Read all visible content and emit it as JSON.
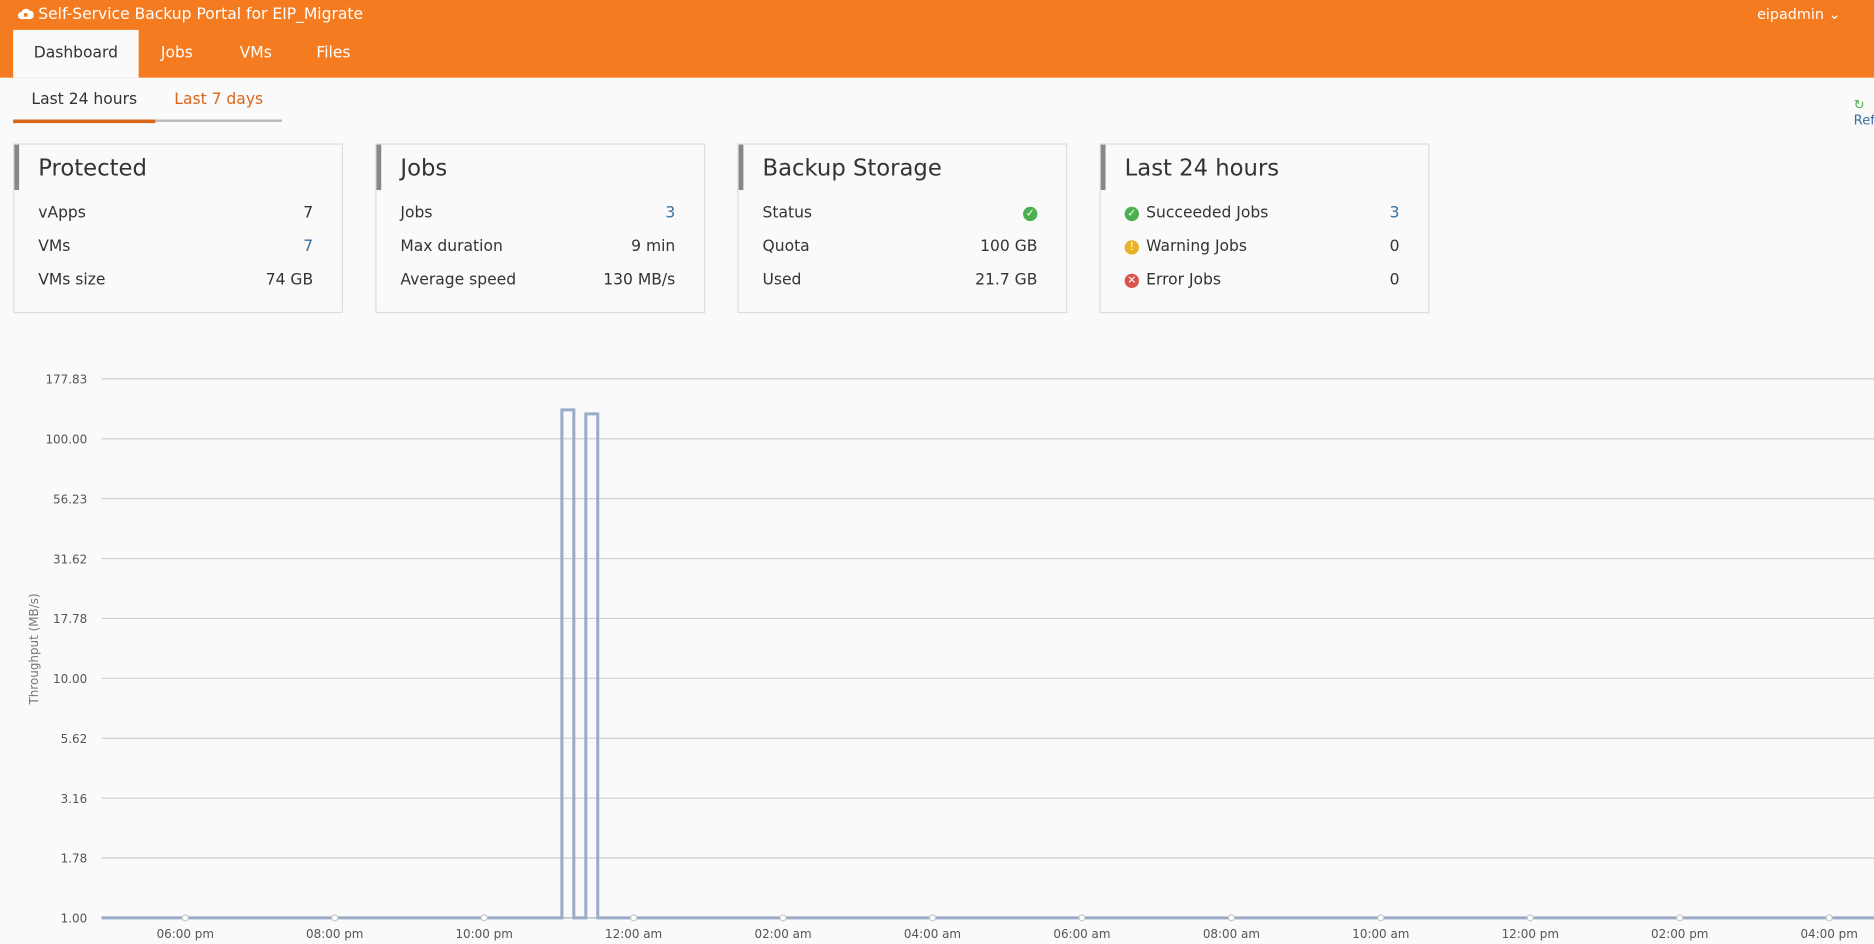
{
  "header": {
    "title": "Self-Service Backup Portal for EIP_Migrate",
    "user": "eipadmin"
  },
  "tabs": [
    "Dashboard",
    "Jobs",
    "VMs",
    "Files"
  ],
  "period_tabs": [
    "Last 24 hours",
    "Last 7 days"
  ],
  "refresh": "Ref",
  "cards": [
    {
      "title": "Protected",
      "rows": [
        [
          "vApps",
          "7"
        ],
        [
          "VMs",
          "7"
        ],
        [
          "VMs size",
          "74 GB"
        ]
      ]
    },
    {
      "title": "Jobs",
      "rows": [
        [
          "Jobs",
          "3"
        ],
        [
          "Max duration",
          "9 min"
        ],
        [
          "Average speed",
          "130 MB/s"
        ]
      ]
    },
    {
      "title": "Backup Storage",
      "rows": [
        [
          "Status",
          ""
        ],
        [
          "Quota",
          "100 GB"
        ],
        [
          "Used",
          "21.7 GB"
        ]
      ]
    },
    {
      "title": "Last 24 hours",
      "rows": [
        [
          "Succeeded Jobs",
          "3"
        ],
        [
          "Warning Jobs",
          "0"
        ],
        [
          "Error Jobs",
          "0"
        ]
      ]
    }
  ],
  "chart_data": {
    "type": "line",
    "y_label": "Throughput (MB/s)",
    "log_scale": true,
    "grid": true,
    "color": "#9aabc7",
    "x": [
      16.88,
      23.04,
      23.04,
      23.2,
      23.2,
      23.36,
      23.36,
      23.52,
      23.52,
      40.6
    ],
    "values": [
      1,
      1,
      132,
      132,
      1,
      1,
      127,
      127,
      1,
      1
    ],
    "xlim": [
      16.88,
      40.6
    ],
    "xticks": [
      {
        "value": 18,
        "label": "06:00 pm"
      },
      {
        "value": 20,
        "label": "08:00 pm"
      },
      {
        "value": 22,
        "label": "10:00 pm"
      },
      {
        "value": 24,
        "label": "12:00 am"
      },
      {
        "value": 26,
        "label": "02:00 am"
      },
      {
        "value": 28,
        "label": "04:00 am"
      },
      {
        "value": 30,
        "label": "06:00 am"
      },
      {
        "value": 32,
        "label": "08:00 am"
      },
      {
        "value": 34,
        "label": "10:00 am"
      },
      {
        "value": 36,
        "label": "12:00 pm"
      },
      {
        "value": 38,
        "label": "02:00 pm"
      },
      {
        "value": 40,
        "label": "04:00 pm"
      }
    ],
    "ylim": [
      1,
      177.83
    ],
    "yticks": [
      {
        "value": 1,
        "label": "1.00"
      },
      1.78,
      3.16,
      5.62,
      {
        "value": 10,
        "label": "10.00"
      },
      17.78,
      31.62,
      56.23,
      {
        "value": 100,
        "label": "100.00"
      },
      177.83
    ]
  }
}
